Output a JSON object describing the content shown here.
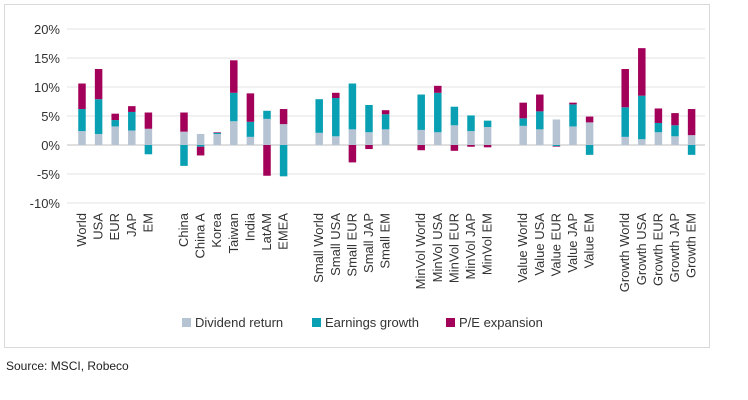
{
  "chart_data": {
    "type": "bar",
    "stacked": true,
    "ylim": [
      -10,
      20
    ],
    "yticks": [
      "-10%",
      "-5%",
      "0%",
      "5%",
      "10%",
      "15%",
      "20%"
    ],
    "ytick_values": [
      -10,
      -5,
      0,
      5,
      10,
      15,
      20
    ],
    "grid": true,
    "legend_position": "bottom",
    "groups": [
      [
        "World",
        "USA",
        "EUR",
        "JAP",
        "EM"
      ],
      [
        "China",
        "China A",
        "Korea",
        "Taiwan",
        "India",
        "LatAM",
        "EMEA"
      ],
      [
        "Small World",
        "Small USA",
        "Small EUR",
        "Small JAP",
        "Small EM"
      ],
      [
        "MinVol World",
        "MinVol USA",
        "MinVol EUR",
        "MinVol JAP",
        "MinVol EM"
      ],
      [
        "Value World",
        "Value USA",
        "Value EUR",
        "Value JAP",
        "Value EM"
      ],
      [
        "Growth World",
        "Growth USA",
        "Growth EUR",
        "Growth JAP",
        "Growth EM"
      ]
    ],
    "categories": [
      "World",
      "USA",
      "EUR",
      "JAP",
      "EM",
      "China",
      "China A",
      "Korea",
      "Taiwan",
      "India",
      "LatAM",
      "EMEA",
      "Small World",
      "Small USA",
      "Small EUR",
      "Small JAP",
      "Small EM",
      "MinVol World",
      "MinVol USA",
      "MinVol EUR",
      "MinVol JAP",
      "MinVol EM",
      "Value World",
      "Value USA",
      "Value EUR",
      "Value JAP",
      "Value EM",
      "Growth World",
      "Growth USA",
      "Growth EUR",
      "Growth JAP",
      "Growth EM"
    ],
    "series": [
      {
        "name": "Dividend return",
        "color": "#b6c3d3",
        "values": [
          2.4,
          1.9,
          3.2,
          2.5,
          2.8,
          2.3,
          1.9,
          1.9,
          4.1,
          1.4,
          4.5,
          3.6,
          2.1,
          1.5,
          2.7,
          2.2,
          2.7,
          2.6,
          2.2,
          3.4,
          2.4,
          3.1,
          3.3,
          2.7,
          4.4,
          3.2,
          3.9,
          1.4,
          1.0,
          2.2,
          1.5,
          1.7
        ]
      },
      {
        "name": "Earnings growth",
        "color": "#0aa0b4",
        "values": [
          3.8,
          6.0,
          1.1,
          3.2,
          -1.6,
          -3.6,
          -0.3,
          0.2,
          4.9,
          2.6,
          1.4,
          -5.4,
          5.8,
          6.6,
          7.9,
          4.7,
          2.6,
          6.1,
          6.8,
          3.2,
          2.7,
          1.1,
          1.3,
          3.1,
          -0.2,
          3.8,
          -1.7,
          5.1,
          7.5,
          1.6,
          1.9,
          -1.7
        ]
      },
      {
        "name": "P/E expansion",
        "color": "#a3005a",
        "values": [
          4.4,
          5.2,
          1.1,
          1.0,
          2.8,
          3.3,
          -1.5,
          0.1,
          5.6,
          4.9,
          -5.3,
          2.6,
          0.0,
          0.9,
          -3.0,
          -0.7,
          0.7,
          -0.9,
          1.2,
          -1.0,
          -0.3,
          -0.4,
          2.7,
          2.9,
          -0.1,
          0.3,
          1.0,
          6.6,
          8.2,
          2.5,
          2.1,
          4.5
        ]
      }
    ]
  },
  "source": "Source: MSCI, Robeco"
}
